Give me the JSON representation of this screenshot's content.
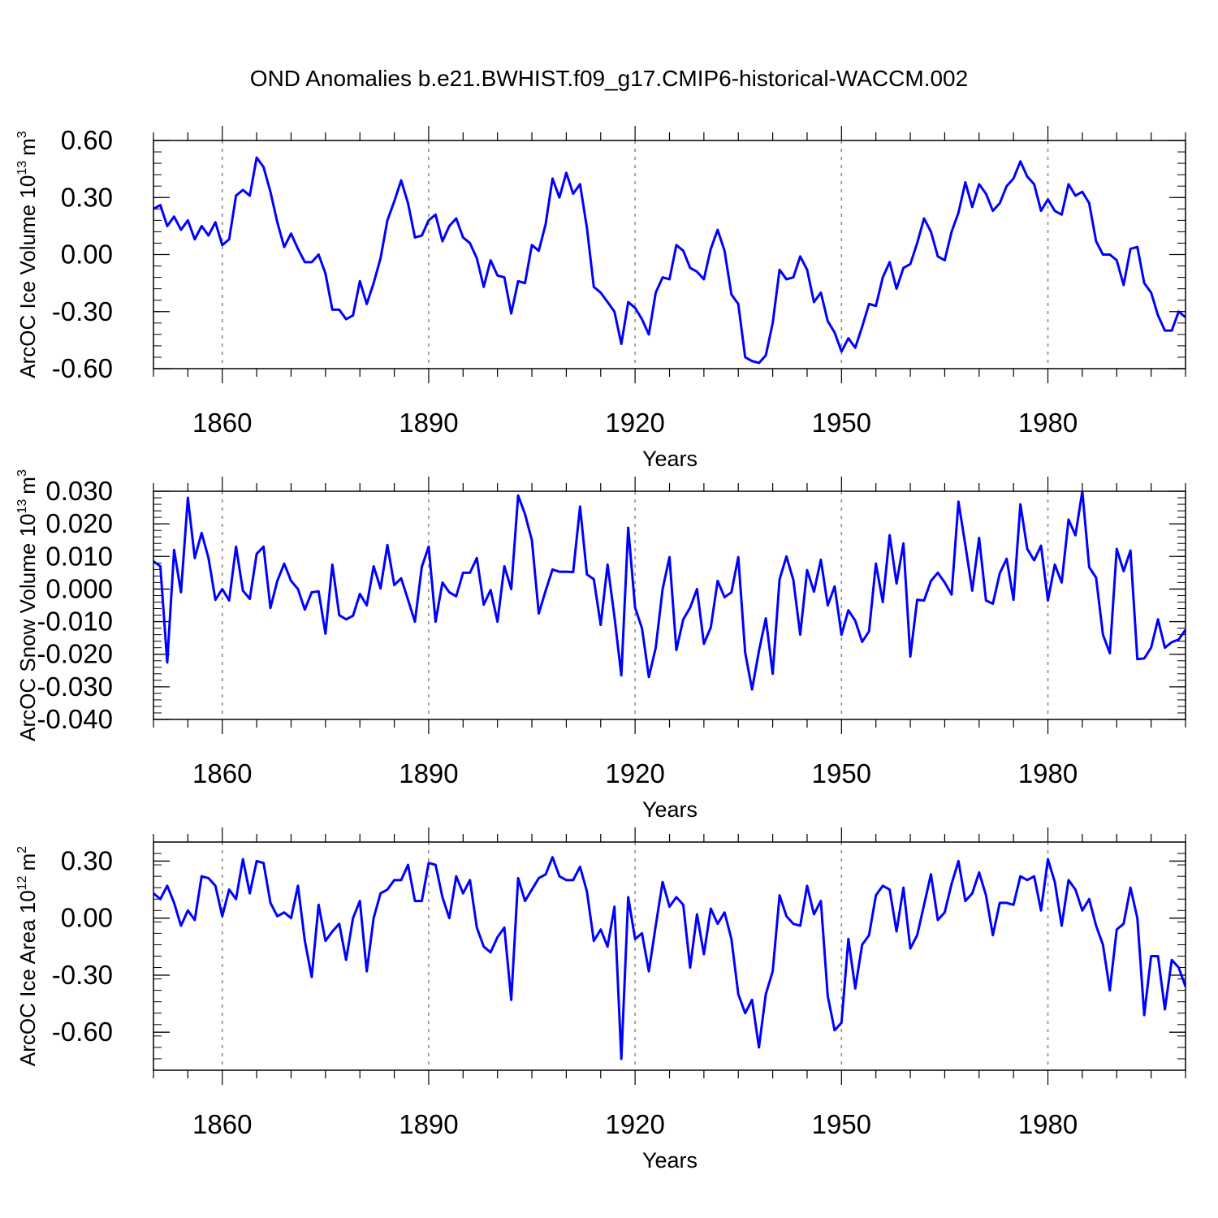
{
  "figure": {
    "title": "OND Anomalies b.e21.BWHIST.f09_g17.CMIP6-historical-WACCM.002",
    "line_color": "#0000ff",
    "grid_color": "#888888"
  },
  "chart_data": [
    {
      "type": "line",
      "ylabel": "ArcOC Ice Volume 10",
      "ylabel_exp": "13",
      "ylabel_unit": "m",
      "ylabel_unit_exp": "3",
      "xlabel": "Years",
      "xlim": [
        1850,
        2000
      ],
      "ylim": [
        -0.6,
        0.6
      ],
      "yticks": [
        -0.6,
        -0.3,
        0.0,
        0.3,
        0.6
      ],
      "ytick_labels": [
        "-0.60",
        "-0.30",
        "0.00",
        "0.30",
        "0.60"
      ],
      "xticks": [
        1860,
        1890,
        1920,
        1950,
        1980
      ],
      "xtick_labels": [
        "1860",
        "1890",
        "1920",
        "1950",
        "1980"
      ],
      "x_start": 1850,
      "values": [
        0.24,
        0.26,
        0.15,
        0.2,
        0.13,
        0.18,
        0.08,
        0.15,
        0.1,
        0.17,
        0.05,
        0.08,
        0.31,
        0.34,
        0.31,
        0.51,
        0.46,
        0.33,
        0.17,
        0.04,
        0.11,
        0.03,
        -0.04,
        -0.04,
        0.0,
        -0.1,
        -0.29,
        -0.29,
        -0.34,
        -0.32,
        -0.14,
        -0.26,
        -0.15,
        -0.02,
        0.18,
        0.28,
        0.39,
        0.27,
        0.09,
        0.1,
        0.18,
        0.21,
        0.07,
        0.15,
        0.19,
        0.09,
        0.06,
        -0.02,
        -0.17,
        -0.03,
        -0.11,
        -0.12,
        -0.31,
        -0.14,
        -0.15,
        0.05,
        0.02,
        0.16,
        0.4,
        0.3,
        0.43,
        0.32,
        0.37,
        0.14,
        -0.17,
        -0.2,
        -0.25,
        -0.3,
        -0.47,
        -0.25,
        -0.28,
        -0.34,
        -0.42,
        -0.2,
        -0.12,
        -0.13,
        0.05,
        0.02,
        -0.07,
        -0.09,
        -0.13,
        0.03,
        0.13,
        0.02,
        -0.21,
        -0.26,
        -0.54,
        -0.56,
        -0.57,
        -0.53,
        -0.36,
        -0.08,
        -0.13,
        -0.12,
        -0.01,
        -0.08,
        -0.25,
        -0.2,
        -0.35,
        -0.41,
        -0.51,
        -0.44,
        -0.49,
        -0.38,
        -0.26,
        -0.27,
        -0.12,
        -0.04,
        -0.18,
        -0.07,
        -0.05,
        0.06,
        0.19,
        0.12,
        -0.01,
        -0.03,
        0.12,
        0.22,
        0.38,
        0.25,
        0.37,
        0.32,
        0.23,
        0.27,
        0.36,
        0.4,
        0.49,
        0.41,
        0.37,
        0.23,
        0.29,
        0.23,
        0.21,
        0.37,
        0.31,
        0.33,
        0.27,
        0.07,
        0.0,
        0.0,
        -0.03,
        -0.16,
        0.03,
        0.04,
        -0.15,
        -0.2,
        -0.32,
        -0.4,
        -0.4,
        -0.3,
        -0.33
      ]
    },
    {
      "type": "line",
      "ylabel": "ArcOC Snow Volume 10",
      "ylabel_exp": "13",
      "ylabel_unit": "m",
      "ylabel_unit_exp": "3",
      "xlabel": "Years",
      "xlim": [
        1850,
        2000
      ],
      "ylim": [
        -0.04,
        0.03
      ],
      "yticks": [
        -0.04,
        -0.03,
        -0.02,
        -0.01,
        0.0,
        0.01,
        0.02,
        0.03
      ],
      "ytick_labels": [
        "-0.040",
        "-0.030",
        "-0.020",
        "-0.010",
        "0.000",
        "0.010",
        "0.020",
        "0.030"
      ],
      "xticks": [
        1860,
        1890,
        1920,
        1950,
        1980
      ],
      "xtick_labels": [
        "1860",
        "1890",
        "1920",
        "1950",
        "1980"
      ],
      "x_start": 1850,
      "values": [
        0.0085,
        0.007,
        -0.0225,
        0.012,
        -0.001,
        0.028,
        0.0095,
        0.0172,
        0.0095,
        -0.0033,
        0.0,
        -0.0035,
        0.013,
        -0.0005,
        -0.003,
        0.0108,
        0.013,
        -0.0058,
        0.0025,
        0.0078,
        0.0025,
        0.0,
        -0.0063,
        -0.001,
        -0.0007,
        -0.0137,
        0.0075,
        -0.008,
        -0.0093,
        -0.0082,
        -0.0015,
        -0.005,
        0.007,
        0.0002,
        0.0135,
        0.0012,
        0.0033,
        -0.0033,
        -0.01,
        0.0068,
        0.013,
        -0.01,
        0.002,
        -0.001,
        -0.0022,
        0.005,
        0.005,
        0.0095,
        -0.0048,
        -0.0003,
        -0.01,
        0.007,
        0.0,
        0.0287,
        0.023,
        0.015,
        -0.0075,
        -0.0005,
        0.006,
        0.0053,
        0.0053,
        0.0052,
        0.0253,
        0.0045,
        0.003,
        -0.011,
        0.0075,
        -0.0085,
        -0.0265,
        0.0188,
        -0.0057,
        -0.012,
        -0.027,
        -0.018,
        0.0,
        0.0098,
        -0.0187,
        -0.0093,
        -0.0057,
        0.0,
        -0.0168,
        -0.0118,
        0.0025,
        -0.0025,
        -0.001,
        0.0098,
        -0.0195,
        -0.0308,
        -0.019,
        -0.009,
        -0.026,
        0.003,
        0.01,
        0.0028,
        -0.014,
        0.0058,
        -0.0008,
        0.009,
        -0.005,
        0.0008,
        -0.014,
        -0.0065,
        -0.0097,
        -0.0162,
        -0.013,
        0.0078,
        -0.004,
        0.0165,
        0.0017,
        0.014,
        -0.0207,
        -0.0033,
        -0.0035,
        0.0025,
        0.005,
        0.002,
        -0.0017,
        0.0268,
        0.0135,
        -0.0005,
        0.0157,
        -0.0035,
        -0.0045,
        0.0048,
        0.0093,
        -0.0033,
        0.026,
        0.0123,
        0.0088,
        0.0133,
        -0.0035,
        0.0075,
        0.002,
        0.0213,
        0.0165,
        0.03,
        0.0067,
        0.0035,
        -0.014,
        -0.0197,
        0.0123,
        0.0055,
        0.0118,
        -0.0215,
        -0.0213,
        -0.018,
        -0.0093,
        -0.018,
        -0.0163,
        -0.0155,
        -0.0125
      ]
    },
    {
      "type": "line",
      "ylabel": "ArcOC Ice Area 10",
      "ylabel_exp": "12",
      "ylabel_unit": "m",
      "ylabel_unit_exp": "2",
      "xlabel": "Years",
      "xlim": [
        1850,
        2000
      ],
      "ylim": [
        -0.8,
        0.4
      ],
      "yticks": [
        -0.6,
        -0.3,
        0.0,
        0.3
      ],
      "ytick_labels": [
        "-0.60",
        "-0.30",
        "0.00",
        "0.30"
      ],
      "xticks": [
        1860,
        1890,
        1920,
        1950,
        1980
      ],
      "xtick_labels": [
        "1860",
        "1890",
        "1920",
        "1950",
        "1980"
      ],
      "x_start": 1850,
      "values": [
        0.13,
        0.1,
        0.17,
        0.08,
        -0.04,
        0.04,
        -0.01,
        0.22,
        0.21,
        0.17,
        0.01,
        0.15,
        0.1,
        0.31,
        0.13,
        0.3,
        0.29,
        0.08,
        0.01,
        0.03,
        0.0,
        0.17,
        -0.12,
        -0.31,
        0.07,
        -0.12,
        -0.07,
        -0.03,
        -0.22,
        0.0,
        0.09,
        -0.28,
        0.0,
        0.13,
        0.15,
        0.2,
        0.2,
        0.28,
        0.09,
        0.09,
        0.29,
        0.28,
        0.11,
        0.0,
        0.22,
        0.13,
        0.2,
        -0.05,
        -0.15,
        -0.18,
        -0.1,
        -0.05,
        -0.43,
        0.21,
        0.09,
        0.15,
        0.21,
        0.23,
        0.32,
        0.22,
        0.2,
        0.2,
        0.27,
        0.14,
        -0.12,
        -0.06,
        -0.15,
        0.06,
        -0.74,
        0.11,
        -0.11,
        -0.08,
        -0.28,
        -0.04,
        0.19,
        0.06,
        0.11,
        0.07,
        -0.26,
        0.02,
        -0.19,
        0.05,
        -0.03,
        0.03,
        -0.11,
        -0.4,
        -0.5,
        -0.43,
        -0.68,
        -0.4,
        -0.28,
        0.12,
        0.01,
        -0.03,
        -0.04,
        0.17,
        0.02,
        0.09,
        -0.41,
        -0.59,
        -0.55,
        -0.11,
        -0.37,
        -0.14,
        -0.09,
        0.12,
        0.17,
        0.15,
        -0.07,
        0.16,
        -0.16,
        -0.09,
        0.07,
        0.23,
        -0.01,
        0.03,
        0.18,
        0.3,
        0.09,
        0.13,
        0.24,
        0.12,
        -0.09,
        0.08,
        0.08,
        0.07,
        0.22,
        0.2,
        0.22,
        0.04,
        0.31,
        0.19,
        -0.04,
        0.2,
        0.15,
        0.04,
        0.1,
        -0.04,
        -0.14,
        -0.38,
        -0.06,
        -0.03,
        0.16,
        0.0,
        -0.51,
        -0.2,
        -0.2,
        -0.48,
        -0.22,
        -0.26,
        -0.36
      ]
    }
  ]
}
